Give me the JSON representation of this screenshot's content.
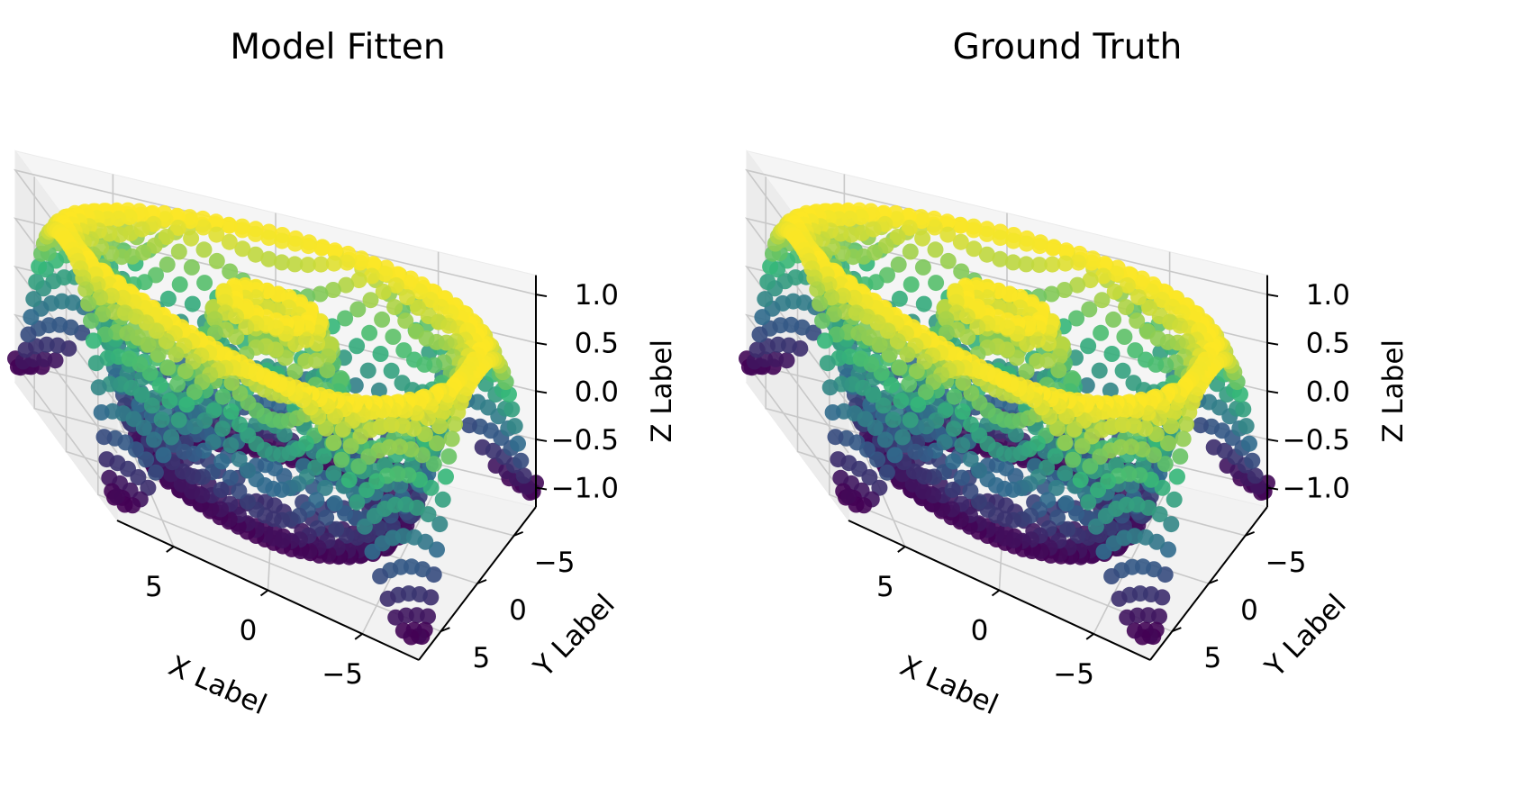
{
  "chart_data": [
    {
      "type": "scatter3d",
      "title": "Model Fitten",
      "xlabel": "X Label",
      "ylabel": "Y Label",
      "zlabel": "Z Label",
      "xlim": [
        -8,
        8
      ],
      "ylim": [
        -8,
        8
      ],
      "zlim": [
        -1.2,
        1.2
      ],
      "xticks": [
        "5",
        "0",
        "−5"
      ],
      "yticks": [
        "−5",
        "0",
        "5"
      ],
      "zticks": [
        "1.0",
        "0.5",
        "0.0",
        "−0.5",
        "−1.0"
      ],
      "surface": "z = sin(r), r = sqrt(x^2 + y^2), sampled on a square grid x, y in [-8, 8]",
      "colormap": "viridis",
      "colors": [
        "#440154",
        "#31688e",
        "#35b779",
        "#fde725"
      ],
      "grid": true
    },
    {
      "type": "scatter3d",
      "title": "Ground Truth",
      "xlabel": "X Label",
      "ylabel": "Y Label",
      "zlabel": "Z Label",
      "xlim": [
        -8,
        8
      ],
      "ylim": [
        -8,
        8
      ],
      "zlim": [
        -1.2,
        1.2
      ],
      "xticks": [
        "5",
        "0",
        "−5"
      ],
      "yticks": [
        "−5",
        "0",
        "5"
      ],
      "zticks": [
        "1.0",
        "0.5",
        "0.0",
        "−0.5",
        "−1.0"
      ],
      "surface": "z = sin(r), r = sqrt(x^2 + y^2), sampled on a square grid x, y in [-8, 8]",
      "colormap": "viridis",
      "colors": [
        "#440154",
        "#31688e",
        "#35b779",
        "#fde725"
      ],
      "grid": true
    }
  ]
}
